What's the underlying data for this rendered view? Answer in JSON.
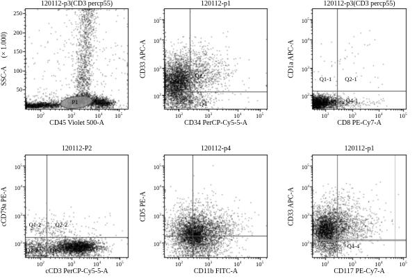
{
  "figure": {
    "background": "#ffffff",
    "dot_color": "#000000",
    "frame_color": "#1a1a1a",
    "tick_color": "#111111",
    "gate_fill": "#9a9a9a",
    "gate_stroke": "#4a4a4a"
  },
  "chart_data": [
    {
      "type": "scatter",
      "title": "120112-p3(CD3 percp55)",
      "xlabel": "CD45 Violet 500-A",
      "ylabel": "SSC-A",
      "ylabel_suffix": "(× 1.000)",
      "x_scale": "log",
      "y_scale": "linear",
      "x_ticks": [
        {
          "e": 2,
          "f": 0.15
        },
        {
          "e": 3,
          "f": 0.45
        },
        {
          "e": 4,
          "f": 0.715
        },
        {
          "e": 5,
          "f": 0.91
        }
      ],
      "y_ticks": [
        {
          "v": "50",
          "f": 0.81
        },
        {
          "v": "100",
          "f": 0.62
        },
        {
          "v": "150",
          "f": 0.43
        },
        {
          "v": "200",
          "f": 0.24
        },
        {
          "v": "250",
          "f": 0.05
        }
      ],
      "gates": [
        {
          "kind": "ellipse",
          "label": "P1",
          "cx": 0.5,
          "cy": 0.935,
          "rx": 0.155,
          "ry": 0.058,
          "rot": -7
        },
        {
          "kind": "label",
          "text": "P1",
          "fx": 0.455,
          "fy": 0.93
        }
      ],
      "clusters": [
        {
          "fx": 0.09,
          "fy": 0.965,
          "sx": 0.1,
          "sy": 0.015,
          "n": 900
        },
        {
          "fx": 0.28,
          "fy": 0.955,
          "sx": 0.09,
          "sy": 0.02,
          "n": 350
        },
        {
          "fx": 0.5,
          "fy": 0.93,
          "sx": 0.055,
          "sy": 0.028,
          "n": 650
        },
        {
          "fx": 0.57,
          "fy": 0.875,
          "sx": 0.045,
          "sy": 0.03,
          "n": 300
        },
        {
          "fx": 0.7,
          "fy": 0.93,
          "sx": 0.06,
          "sy": 0.03,
          "n": 800
        },
        {
          "fx": 0.79,
          "fy": 0.945,
          "sx": 0.045,
          "sy": 0.02,
          "n": 250
        },
        {
          "fx": 0.56,
          "fy": 0.73,
          "sx": 0.04,
          "sy": 0.07,
          "n": 260
        },
        {
          "fx": 0.575,
          "fy": 0.52,
          "sx": 0.04,
          "sy": 0.09,
          "n": 220
        },
        {
          "fx": 0.59,
          "fy": 0.3,
          "sx": 0.045,
          "sy": 0.1,
          "n": 200
        },
        {
          "fx": 0.6,
          "fy": 0.12,
          "sx": 0.05,
          "sy": 0.06,
          "n": 130
        },
        {
          "fx": 0.61,
          "fy": 0.03,
          "sx": 0.05,
          "sy": 0.03,
          "n": 70
        },
        {
          "fx": 0.25,
          "fy": 0.91,
          "sx": 0.2,
          "sy": 0.04,
          "n": 160
        },
        {
          "fx": 0.5,
          "fy": 0.55,
          "sx": 0.33,
          "sy": 0.3,
          "n": 280
        }
      ]
    },
    {
      "type": "scatter",
      "title": "120112-p1",
      "xlabel": "CD34 PerCP-Cy5-5-A",
      "ylabel": "CD33 APC-A",
      "x_scale": "log",
      "y_scale": "log",
      "x_ticks": [
        {
          "e": 2,
          "f": 0.145
        },
        {
          "e": 3,
          "f": 0.43
        },
        {
          "e": 4,
          "f": 0.715
        },
        {
          "e": 5,
          "f": 0.93
        }
      ],
      "y_ticks": [
        {
          "e": 5,
          "f": 0.11
        },
        {
          "e": 4,
          "f": 0.31
        },
        {
          "e": 3,
          "f": 0.59
        },
        {
          "e": 2,
          "f": 0.86
        }
      ],
      "gates": [
        {
          "kind": "vline",
          "f": 0.25,
          "color": "#555555",
          "w": 1
        },
        {
          "kind": "hline",
          "f": 0.828,
          "color": "#555555",
          "w": 1
        },
        {
          "kind": "label",
          "text": "Q2",
          "fx": 0.3,
          "fy": 0.667
        },
        {
          "kind": "label",
          "text": "Q4",
          "fx": 0.345,
          "fy": 0.95
        }
      ],
      "clusters": [
        {
          "fx": 0.13,
          "fy": 0.7,
          "sx": 0.085,
          "sy": 0.1,
          "n": 2000
        },
        {
          "fx": 0.1,
          "fy": 0.78,
          "sx": 0.06,
          "sy": 0.07,
          "n": 650
        },
        {
          "fx": 0.32,
          "fy": 0.67,
          "sx": 0.12,
          "sy": 0.1,
          "n": 650
        },
        {
          "fx": 0.15,
          "fy": 0.91,
          "sx": 0.1,
          "sy": 0.05,
          "n": 480
        },
        {
          "fx": 0.3,
          "fy": 0.92,
          "sx": 0.1,
          "sy": 0.04,
          "n": 150
        },
        {
          "fx": 0.24,
          "fy": 0.47,
          "sx": 0.16,
          "sy": 0.1,
          "n": 210
        },
        {
          "fx": 0.52,
          "fy": 0.62,
          "sx": 0.1,
          "sy": 0.09,
          "n": 80
        },
        {
          "fx": 0.5,
          "fy": 0.68,
          "sx": 0.3,
          "sy": 0.2,
          "n": 90
        }
      ]
    },
    {
      "type": "scatter",
      "title": "120112-p3(CD3 percp55)",
      "xlabel": "CD8 PE-Cy7-A",
      "ylabel": "CD1a APC-A",
      "x_scale": "log",
      "y_scale": "log",
      "x_ticks": [
        {
          "e": 2,
          "f": 0.14
        },
        {
          "e": 3,
          "f": 0.43
        },
        {
          "e": 4,
          "f": 0.71
        },
        {
          "e": 5,
          "f": 0.97
        }
      ],
      "y_ticks": [
        {
          "e": 5,
          "f": 0.11
        },
        {
          "e": 4,
          "f": 0.31
        },
        {
          "e": 3,
          "f": 0.59
        },
        {
          "e": 2,
          "f": 0.86
        }
      ],
      "gates": [
        {
          "kind": "vline",
          "f": 0.267,
          "color": "#555555",
          "w": 1
        },
        {
          "kind": "hline",
          "f": 0.822,
          "color": "#555555",
          "w": 1
        },
        {
          "kind": "label",
          "text": "Q1-1",
          "fx": 0.08,
          "fy": 0.7
        },
        {
          "kind": "label",
          "text": "Q2-1",
          "fx": 0.35,
          "fy": 0.7
        },
        {
          "kind": "label",
          "text": "Q4-1",
          "fx": 0.36,
          "fy": 0.915
        }
      ],
      "clusters": [
        {
          "fx": 0.09,
          "fy": 0.93,
          "sx": 0.08,
          "sy": 0.035,
          "n": 1500
        },
        {
          "fx": 0.05,
          "fy": 0.95,
          "sx": 0.04,
          "sy": 0.03,
          "n": 500
        },
        {
          "fx": 0.27,
          "fy": 0.93,
          "sx": 0.08,
          "sy": 0.03,
          "n": 280
        },
        {
          "fx": 0.52,
          "fy": 0.94,
          "sx": 0.13,
          "sy": 0.025,
          "n": 70
        },
        {
          "fx": 0.3,
          "fy": 0.55,
          "sx": 0.25,
          "sy": 0.22,
          "n": 55
        }
      ]
    },
    {
      "type": "scatter",
      "title": "120112-P2",
      "xlabel": "cCD3 PerCP-Cy5-5-A",
      "ylabel": "cCD79a PE-A",
      "x_scale": "log",
      "y_scale": "log",
      "x_ticks": [
        {
          "e": 2,
          "f": 0.15
        },
        {
          "e": 3,
          "f": 0.45
        },
        {
          "e": 4,
          "f": 0.7
        },
        {
          "e": 5,
          "f": 0.92
        }
      ],
      "y_ticks": [
        {
          "e": 5,
          "f": 0.11
        },
        {
          "e": 4,
          "f": 0.31
        },
        {
          "e": 3,
          "f": 0.59
        },
        {
          "e": 2,
          "f": 0.86
        }
      ],
      "gates": [
        {
          "kind": "vline",
          "f": 0.209,
          "color": "#555555",
          "w": 1
        },
        {
          "kind": "hline",
          "f": 0.804,
          "color": "#555555",
          "w": 1
        },
        {
          "kind": "label",
          "text": "Q1-2",
          "fx": 0.038,
          "fy": 0.685
        },
        {
          "kind": "label",
          "text": "Q2-2",
          "fx": 0.295,
          "fy": 0.685
        },
        {
          "kind": "label",
          "text": "Q3-2",
          "fx": 0.008,
          "fy": 0.93
        },
        {
          "kind": "label",
          "text": "Q4-2",
          "fx": 0.24,
          "fy": 0.93
        }
      ],
      "clusters": [
        {
          "fx": 0.47,
          "fy": 0.9,
          "sx": 0.13,
          "sy": 0.042,
          "n": 1900
        },
        {
          "fx": 0.54,
          "fy": 0.895,
          "sx": 0.08,
          "sy": 0.03,
          "n": 700
        },
        {
          "fx": 0.13,
          "fy": 0.92,
          "sx": 0.09,
          "sy": 0.05,
          "n": 550
        },
        {
          "fx": 0.28,
          "fy": 0.71,
          "sx": 0.12,
          "sy": 0.07,
          "n": 150
        },
        {
          "fx": 0.1,
          "fy": 0.74,
          "sx": 0.06,
          "sy": 0.05,
          "n": 60
        },
        {
          "fx": 0.68,
          "fy": 0.89,
          "sx": 0.07,
          "sy": 0.035,
          "n": 70
        },
        {
          "fx": 0.4,
          "fy": 0.8,
          "sx": 0.3,
          "sy": 0.12,
          "n": 130
        }
      ]
    },
    {
      "type": "scatter",
      "title": "120112-p4",
      "xlabel": "CD11b FITC-A",
      "ylabel": "CD5 PE-A",
      "x_scale": "log",
      "y_scale": "log",
      "x_ticks": [
        {
          "e": 2,
          "f": 0.145
        },
        {
          "e": 3,
          "f": 0.43
        },
        {
          "e": 4,
          "f": 0.715
        },
        {
          "e": 5,
          "f": 0.93
        }
      ],
      "y_ticks": [
        {
          "e": 5,
          "f": 0.11
        },
        {
          "e": 4,
          "f": 0.31
        },
        {
          "e": 3,
          "f": 0.59
        },
        {
          "e": 2,
          "f": 0.86
        }
      ],
      "gates": [
        {
          "kind": "vline",
          "f": 0.277,
          "color": "#555555",
          "w": 1
        },
        {
          "kind": "hline",
          "f": 0.79,
          "color": "#555555",
          "w": 1
        }
      ],
      "clusters": [
        {
          "fx": 0.29,
          "fy": 0.77,
          "sx": 0.115,
          "sy": 0.095,
          "n": 2600
        },
        {
          "fx": 0.29,
          "fy": 0.78,
          "sx": 0.05,
          "sy": 0.05,
          "n": 700
        },
        {
          "fx": 0.5,
          "fy": 0.74,
          "sx": 0.1,
          "sy": 0.08,
          "n": 400
        },
        {
          "fx": 0.3,
          "fy": 0.52,
          "sx": 0.14,
          "sy": 0.09,
          "n": 160
        },
        {
          "fx": 0.65,
          "fy": 0.72,
          "sx": 0.09,
          "sy": 0.07,
          "n": 70
        },
        {
          "fx": 0.35,
          "fy": 0.92,
          "sx": 0.15,
          "sy": 0.05,
          "n": 260
        },
        {
          "fx": 0.4,
          "fy": 0.7,
          "sx": 0.28,
          "sy": 0.18,
          "n": 130
        }
      ]
    },
    {
      "type": "scatter",
      "title": "120112-p1",
      "xlabel": "CD117 PE-Cy7-A",
      "ylabel": "CD33 APC-A",
      "x_scale": "log",
      "y_scale": "log",
      "x_ticks": [
        {
          "e": 2,
          "f": 0.14
        },
        {
          "e": 3,
          "f": 0.43
        },
        {
          "e": 4,
          "f": 0.71
        },
        {
          "e": 5,
          "f": 0.97
        }
      ],
      "y_ticks": [
        {
          "e": 5,
          "f": 0.11
        },
        {
          "e": 4,
          "f": 0.31
        },
        {
          "e": 3,
          "f": 0.59
        },
        {
          "e": 2,
          "f": 0.86
        }
      ],
      "gates": [
        {
          "kind": "vline",
          "f": 0.267,
          "color": "#777777",
          "w": 1
        },
        {
          "kind": "vline",
          "f": 0.881,
          "color": "#c4c4c4",
          "w": 1
        },
        {
          "kind": "hline",
          "f": 0.831,
          "color": "#8a8a8a",
          "w": 2
        },
        {
          "kind": "label",
          "text": "Q4-4",
          "fx": 0.375,
          "fy": 0.89
        }
      ],
      "clusters": [
        {
          "fx": 0.16,
          "fy": 0.72,
          "sx": 0.095,
          "sy": 0.095,
          "n": 2000
        },
        {
          "fx": 0.13,
          "fy": 0.73,
          "sx": 0.05,
          "sy": 0.06,
          "n": 650
        },
        {
          "fx": 0.38,
          "fy": 0.7,
          "sx": 0.13,
          "sy": 0.09,
          "n": 600
        },
        {
          "fx": 0.18,
          "fy": 0.9,
          "sx": 0.1,
          "sy": 0.05,
          "n": 380
        },
        {
          "fx": 0.24,
          "fy": 0.48,
          "sx": 0.14,
          "sy": 0.09,
          "n": 170
        },
        {
          "fx": 0.58,
          "fy": 0.73,
          "sx": 0.1,
          "sy": 0.07,
          "n": 70
        },
        {
          "fx": 0.35,
          "fy": 0.65,
          "sx": 0.28,
          "sy": 0.18,
          "n": 110
        }
      ]
    }
  ]
}
